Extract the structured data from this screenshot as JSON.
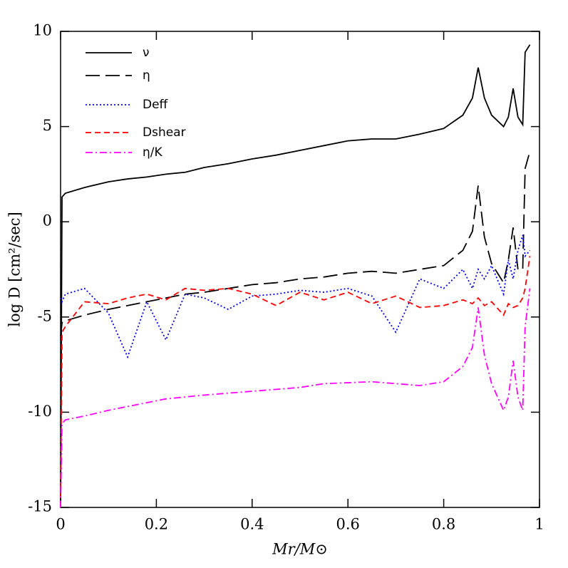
{
  "chart_data": {
    "type": "line",
    "x_label": "Mr/M⊙",
    "y_label": "log D [cm²/sec]",
    "xlim": [
      0,
      1
    ],
    "ylim": [
      -15,
      10
    ],
    "xticks": [
      0,
      0.2,
      0.4,
      0.6,
      0.8,
      1
    ],
    "yticks": [
      -15,
      -10,
      -5,
      0,
      5,
      10
    ],
    "legend": "upper left",
    "x": [
      0,
      0.003,
      0.01,
      0.05,
      0.1,
      0.14,
      0.18,
      0.22,
      0.26,
      0.3,
      0.35,
      0.4,
      0.45,
      0.5,
      0.55,
      0.6,
      0.65,
      0.7,
      0.75,
      0.8,
      0.84,
      0.86,
      0.872,
      0.885,
      0.9,
      0.925,
      0.935,
      0.945,
      0.955,
      0.965,
      0.97,
      0.98
    ],
    "series": [
      {
        "name": "ν",
        "color": "#000000",
        "style": "solid",
        "values": [
          -15,
          1.3,
          1.5,
          1.8,
          2.1,
          2.25,
          2.35,
          2.5,
          2.6,
          2.85,
          3.05,
          3.3,
          3.5,
          3.75,
          4.0,
          4.25,
          4.35,
          4.35,
          4.6,
          4.9,
          5.6,
          6.5,
          8.1,
          6.5,
          5.6,
          5.0,
          5.5,
          7.0,
          5.5,
          5.1,
          8.9,
          9.3
        ]
      },
      {
        "name": "η",
        "color": "#000000",
        "style": "longdash",
        "values": [
          -6,
          -5.3,
          -5.2,
          -4.9,
          -4.6,
          -4.4,
          -4.2,
          -4.0,
          -3.8,
          -3.7,
          -3.5,
          -3.3,
          -3.2,
          -3.0,
          -2.9,
          -2.7,
          -2.6,
          -2.7,
          -2.5,
          -2.3,
          -1.5,
          -0.5,
          1.9,
          -0.8,
          -2.2,
          -3.2,
          -2.0,
          -0.3,
          -2.5,
          -2.5,
          2.8,
          3.7
        ]
      },
      {
        "name": "Deff",
        "color": "#0000ff",
        "style": "dotted",
        "values": [
          -4.0,
          -4.2,
          -3.8,
          -3.5,
          -4.8,
          -7.1,
          -4.2,
          -6.2,
          -3.8,
          -4.0,
          -4.6,
          -3.9,
          -3.8,
          -3.6,
          -3.7,
          -3.5,
          -3.9,
          -5.8,
          -3.0,
          -3.5,
          -2.5,
          -3.5,
          -2.5,
          -3.0,
          -2.3,
          -3.8,
          -2.0,
          -3.0,
          -1.5,
          -0.7,
          -1.8,
          -1.5
        ]
      },
      {
        "name": "Dshear",
        "color": "#ff0000",
        "style": "dashed",
        "values": [
          -15,
          -5.8,
          -5.5,
          -4.2,
          -4.3,
          -4.0,
          -3.8,
          -4.1,
          -3.5,
          -3.6,
          -3.5,
          -3.8,
          -4.4,
          -3.7,
          -4.1,
          -3.7,
          -4.3,
          -3.9,
          -4.5,
          -4.4,
          -4.1,
          -4.3,
          -4.0,
          -4.4,
          -4.2,
          -4.9,
          -4.3,
          -4.5,
          -4.4,
          -4.0,
          -3.5,
          -1.8
        ]
      },
      {
        "name": "η/K",
        "color": "#ff00ff",
        "style": "dashdot",
        "values": [
          -15,
          -10.6,
          -10.4,
          -10.2,
          -9.9,
          -9.7,
          -9.5,
          -9.3,
          -9.2,
          -9.1,
          -9.0,
          -8.9,
          -8.8,
          -8.7,
          -8.5,
          -8.45,
          -8.4,
          -8.5,
          -8.6,
          -8.4,
          -7.6,
          -6.6,
          -4.5,
          -7.0,
          -8.5,
          -9.9,
          -9.2,
          -7.3,
          -9.2,
          -9.9,
          -5.5,
          -3.5
        ]
      }
    ]
  }
}
